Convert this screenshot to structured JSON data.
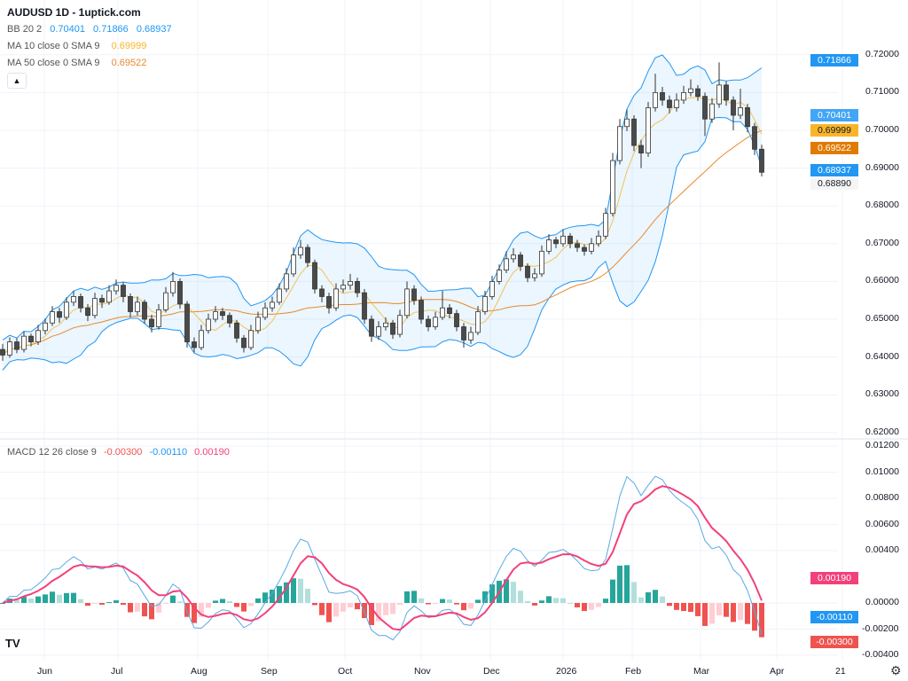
{
  "header": {
    "title": "AUDUSD 1D - 1uptick.com",
    "collapse_icon": "chevron-up-icon"
  },
  "legend": {
    "bb": {
      "label": "BB 20 2",
      "basis": "0.70401",
      "upper": "0.71866",
      "lower": "0.68937"
    },
    "ma10": {
      "label": "MA 10 close 0 SMA 9",
      "value": "0.69999"
    },
    "ma50": {
      "label": "MA 50 close 0 SMA 9",
      "value": "0.69522"
    },
    "macd": {
      "label": "MACD 12 26 close 9",
      "hist": "-0.00300",
      "macd": "-0.00110",
      "signal": "0.00190"
    }
  },
  "colors": {
    "bb": "#2196f3",
    "bb_fill": "rgba(33,150,243,0.09)",
    "ma10": "#f7b52c",
    "ma50": "#e8892b",
    "macd": "#5aa9e6",
    "signal": "#f2417a",
    "hist_up_strong": "#26a69a",
    "hist_up_weak": "#b2dfdb",
    "hist_down_strong": "#ef5350",
    "hist_down_weak": "#ffcdd2",
    "candle_down": "#4a4a4a",
    "candle_up": "#ffffff"
  },
  "chart_data": {
    "type": "candlestick",
    "symbol": "AUDUSD",
    "interval": "1D",
    "candles_ohlc": [
      [
        0.642,
        0.6435,
        0.639,
        0.6405
      ],
      [
        0.6405,
        0.6452,
        0.6398,
        0.644
      ],
      [
        0.644,
        0.645,
        0.641,
        0.642
      ],
      [
        0.642,
        0.6468,
        0.6412,
        0.6455
      ],
      [
        0.6455,
        0.6462,
        0.6428,
        0.644
      ],
      [
        0.644,
        0.6485,
        0.6432,
        0.647
      ],
      [
        0.647,
        0.6502,
        0.646,
        0.649
      ],
      [
        0.649,
        0.6535,
        0.6482,
        0.652
      ],
      [
        0.652,
        0.653,
        0.649,
        0.6505
      ],
      [
        0.6505,
        0.6558,
        0.6498,
        0.6545
      ],
      [
        0.6545,
        0.6575,
        0.6535,
        0.656
      ],
      [
        0.656,
        0.6568,
        0.6518,
        0.653
      ],
      [
        0.653,
        0.654,
        0.6495,
        0.651
      ],
      [
        0.651,
        0.657,
        0.6502,
        0.6555
      ],
      [
        0.6555,
        0.6565,
        0.653,
        0.6545
      ],
      [
        0.6545,
        0.659,
        0.6538,
        0.6575
      ],
      [
        0.6575,
        0.6605,
        0.6565,
        0.659
      ],
      [
        0.659,
        0.6598,
        0.6545,
        0.656
      ],
      [
        0.656,
        0.6568,
        0.6505,
        0.652
      ],
      [
        0.652,
        0.656,
        0.651,
        0.6545
      ],
      [
        0.6545,
        0.6552,
        0.6488,
        0.65
      ],
      [
        0.65,
        0.6512,
        0.6465,
        0.648
      ],
      [
        0.648,
        0.654,
        0.6472,
        0.6525
      ],
      [
        0.6525,
        0.6585,
        0.6518,
        0.657
      ],
      [
        0.657,
        0.6625,
        0.656,
        0.66
      ],
      [
        0.66,
        0.6608,
        0.6528,
        0.654
      ],
      [
        0.654,
        0.6548,
        0.6425,
        0.644
      ],
      [
        0.644,
        0.6452,
        0.6412,
        0.6425
      ],
      [
        0.6425,
        0.6485,
        0.6418,
        0.647
      ],
      [
        0.647,
        0.6515,
        0.6462,
        0.65
      ],
      [
        0.65,
        0.6535,
        0.6492,
        0.652
      ],
      [
        0.652,
        0.653,
        0.6498,
        0.651
      ],
      [
        0.651,
        0.6518,
        0.6478,
        0.649
      ],
      [
        0.649,
        0.6498,
        0.6438,
        0.645
      ],
      [
        0.645,
        0.6458,
        0.6412,
        0.6425
      ],
      [
        0.6425,
        0.6485,
        0.6418,
        0.647
      ],
      [
        0.647,
        0.652,
        0.6462,
        0.6505
      ],
      [
        0.6505,
        0.6545,
        0.6498,
        0.653
      ],
      [
        0.653,
        0.656,
        0.652,
        0.6545
      ],
      [
        0.6545,
        0.6595,
        0.6538,
        0.658
      ],
      [
        0.658,
        0.6635,
        0.6572,
        0.662
      ],
      [
        0.662,
        0.669,
        0.6612,
        0.667
      ],
      [
        0.667,
        0.671,
        0.666,
        0.669
      ],
      [
        0.669,
        0.6698,
        0.6638,
        0.665
      ],
      [
        0.665,
        0.6658,
        0.6568,
        0.658
      ],
      [
        0.658,
        0.659,
        0.6545,
        0.656
      ],
      [
        0.656,
        0.657,
        0.6515,
        0.653
      ],
      [
        0.653,
        0.6595,
        0.6522,
        0.658
      ],
      [
        0.658,
        0.6605,
        0.657,
        0.659
      ],
      [
        0.659,
        0.662,
        0.6578,
        0.66
      ],
      [
        0.66,
        0.661,
        0.6558,
        0.657
      ],
      [
        0.657,
        0.658,
        0.6488,
        0.65
      ],
      [
        0.65,
        0.651,
        0.644,
        0.6455
      ],
      [
        0.6455,
        0.6495,
        0.6445,
        0.648
      ],
      [
        0.648,
        0.6505,
        0.647,
        0.649
      ],
      [
        0.649,
        0.6498,
        0.6448,
        0.646
      ],
      [
        0.646,
        0.6525,
        0.6452,
        0.651
      ],
      [
        0.651,
        0.66,
        0.6502,
        0.658
      ],
      [
        0.658,
        0.659,
        0.6538,
        0.655
      ],
      [
        0.655,
        0.656,
        0.6488,
        0.65
      ],
      [
        0.65,
        0.651,
        0.6468,
        0.648
      ],
      [
        0.648,
        0.652,
        0.6472,
        0.6505
      ],
      [
        0.6505,
        0.6575,
        0.6498,
        0.653
      ],
      [
        0.653,
        0.654,
        0.6502,
        0.6515
      ],
      [
        0.6515,
        0.6525,
        0.6468,
        0.648
      ],
      [
        0.648,
        0.649,
        0.6425,
        0.6445
      ],
      [
        0.6445,
        0.648,
        0.6435,
        0.6465
      ],
      [
        0.6465,
        0.6535,
        0.6458,
        0.652
      ],
      [
        0.652,
        0.6575,
        0.6512,
        0.656
      ],
      [
        0.656,
        0.6615,
        0.6552,
        0.66
      ],
      [
        0.66,
        0.6645,
        0.6592,
        0.663
      ],
      [
        0.663,
        0.668,
        0.6622,
        0.666
      ],
      [
        0.666,
        0.6688,
        0.665,
        0.667
      ],
      [
        0.667,
        0.6678,
        0.6628,
        0.664
      ],
      [
        0.664,
        0.6648,
        0.6598,
        0.661
      ],
      [
        0.661,
        0.6635,
        0.66,
        0.662
      ],
      [
        0.662,
        0.6695,
        0.6612,
        0.668
      ],
      [
        0.668,
        0.6725,
        0.6672,
        0.671
      ],
      [
        0.671,
        0.6718,
        0.6688,
        0.67
      ],
      [
        0.67,
        0.6738,
        0.6692,
        0.672
      ],
      [
        0.672,
        0.6728,
        0.6688,
        0.67
      ],
      [
        0.67,
        0.671,
        0.6678,
        0.669
      ],
      [
        0.669,
        0.6698,
        0.6668,
        0.668
      ],
      [
        0.668,
        0.6715,
        0.6672,
        0.67
      ],
      [
        0.67,
        0.6735,
        0.6692,
        0.672
      ],
      [
        0.672,
        0.6795,
        0.6712,
        0.678
      ],
      [
        0.678,
        0.694,
        0.6772,
        0.692
      ],
      [
        0.692,
        0.703,
        0.691,
        0.701
      ],
      [
        0.701,
        0.7055,
        0.6998,
        0.703
      ],
      [
        0.703,
        0.704,
        0.6945,
        0.696
      ],
      [
        0.696,
        0.6975,
        0.69,
        0.694
      ],
      [
        0.694,
        0.7075,
        0.693,
        0.706
      ],
      [
        0.706,
        0.715,
        0.705,
        0.71
      ],
      [
        0.71,
        0.7115,
        0.7065,
        0.708
      ],
      [
        0.708,
        0.7092,
        0.7045,
        0.706
      ],
      [
        0.706,
        0.7098,
        0.705,
        0.708
      ],
      [
        0.708,
        0.7118,
        0.707,
        0.71
      ],
      [
        0.71,
        0.7135,
        0.709,
        0.711
      ],
      [
        0.711,
        0.712,
        0.7078,
        0.709
      ],
      [
        0.709,
        0.71,
        0.6985,
        0.703
      ],
      [
        0.703,
        0.7085,
        0.702,
        0.707
      ],
      [
        0.707,
        0.718,
        0.706,
        0.712
      ],
      [
        0.712,
        0.713,
        0.7065,
        0.708
      ],
      [
        0.708,
        0.709,
        0.7,
        0.704
      ],
      [
        0.704,
        0.711,
        0.703,
        0.706
      ],
      [
        0.706,
        0.707,
        0.6995,
        0.701
      ],
      [
        0.701,
        0.702,
        0.6935,
        0.695
      ],
      [
        0.695,
        0.6962,
        0.6878,
        0.6889
      ]
    ],
    "price_axis": {
      "ticks": [
        "0.72000",
        "0.71000",
        "0.70000",
        "0.69000",
        "0.68000",
        "0.67000",
        "0.66000",
        "0.65000",
        "0.64000",
        "0.63000",
        "0.62000"
      ],
      "range": [
        0.618,
        0.7215
      ]
    },
    "macd_axis": {
      "ticks": [
        "0.01200",
        "0.01000",
        "0.00800",
        "0.00600",
        "0.00400",
        "0.00000",
        "-0.00200",
        "-0.00400"
      ],
      "range": [
        -0.0044,
        0.0122
      ]
    },
    "x_axis": {
      "labels": [
        "Jun",
        "Jul",
        "Aug",
        "Sep",
        "Oct",
        "Nov",
        "Dec",
        "2026",
        "Feb",
        "Mar",
        "Apr",
        "21"
      ]
    },
    "price_badges": [
      {
        "value": "0.71866",
        "color": "#2196f3",
        "text": "#ffffff"
      },
      {
        "value": "0.70401",
        "color": "#42a5f5",
        "text": "#ffffff"
      },
      {
        "value": "0.69999",
        "color": "#f9b52a",
        "text": "#131722"
      },
      {
        "value": "0.69522",
        "color": "#e07b00",
        "text": "#ffffff"
      },
      {
        "value": "0.68937",
        "color": "#2196f3",
        "text": "#ffffff"
      },
      {
        "value": "0.68890",
        "color": "#f5f5f5",
        "text": "#131722"
      }
    ],
    "macd_badges": [
      {
        "value": "0.00190",
        "color": "#f2417a",
        "text": "#ffffff"
      },
      {
        "value": "-0.00110",
        "color": "#2196f3",
        "text": "#ffffff"
      },
      {
        "value": "-0.00300",
        "color": "#ef5350",
        "text": "#ffffff"
      }
    ],
    "grid": true
  },
  "footer": {
    "logo": "TV",
    "settings_icon": "gear-icon"
  }
}
